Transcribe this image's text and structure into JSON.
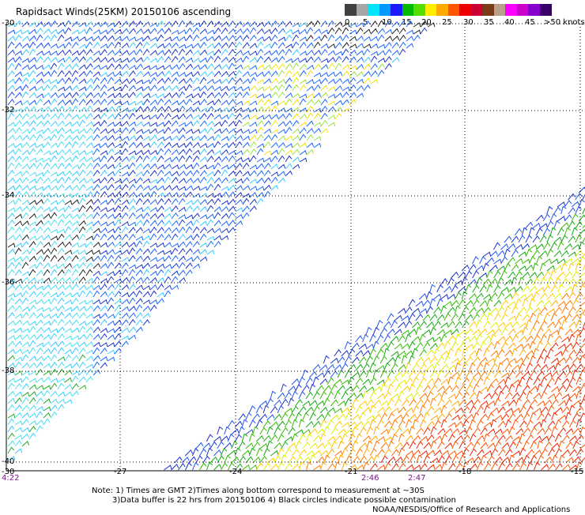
{
  "title": "Rapidsact Winds(25KM) 20150106 ascending",
  "legend": {
    "colors": [
      "#404040",
      "#a6a6a6",
      "#00e5ff",
      "#0099ff",
      "#1a1aff",
      "#00bb00",
      "#55dd00",
      "#ffee00",
      "#ffaa00",
      "#ff5500",
      "#ee0000",
      "#cc0033",
      "#7a3b18",
      "#b8a08a",
      "#ff00ff",
      "#cc00cc",
      "#8800cc",
      "#3a006a"
    ],
    "labels": [
      "0",
      "5",
      "10",
      "15",
      "20",
      "25",
      "30",
      "35",
      "40",
      "45",
      ">50 knots"
    ]
  },
  "axes": {
    "lat_labels": [
      "-30",
      "-32",
      "-34",
      "-36",
      "-38",
      "-40"
    ],
    "lon_labels": [
      "-30",
      "-27",
      "-24",
      "-21",
      "-18",
      "-15"
    ]
  },
  "time_labels": [
    "4:22",
    "2:46",
    "2:47"
  ],
  "notes": [
    "Note: 1) Times are GMT 2)Times along bottom correspond to measurement at ~30S",
    "3)Data buffer is 22 hrs from 20150106 4) Black circles indicate possible contamination",
    "NOAA/NESDIS/Office of Research and Applications"
  ]
}
